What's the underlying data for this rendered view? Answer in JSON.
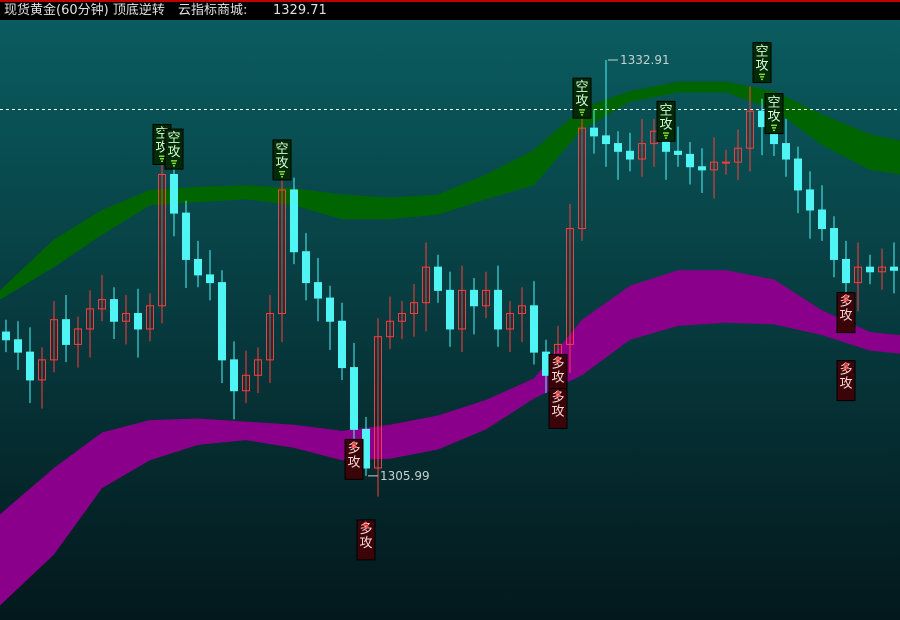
{
  "header": {
    "title": "现货黄金(60分钟) 顶底逆转",
    "price_label": "云指标商城:",
    "price_value": "1329.71"
  },
  "chart_data": {
    "type": "candlestick",
    "ylim": [
      1296.66,
      1335.5
    ],
    "grid": false,
    "colors": {
      "up": "#ff3b3b",
      "down": "#4ff5f5",
      "upper_band": "#006400",
      "lower_band": "#8b008b",
      "bg_top": "#0a5c60",
      "bg_bottom": "#03181c"
    },
    "reference_line": 1329.71,
    "close": [
      1314.8,
      1314,
      1312.2,
      1313.5,
      1316.1,
      1314.5,
      1315.5,
      1316.8,
      1317.4,
      1316,
      1316.5,
      1315.5,
      1317,
      1325.5,
      1323,
      1320,
      1319,
      1318.5,
      1313.5,
      1311.5,
      1312.5,
      1313.5,
      1316.5,
      1324.5,
      1320.5,
      1318.5,
      1317.5,
      1316,
      1313,
      1309,
      1306.5,
      1315,
      1316,
      1316.5,
      1317.2,
      1319.5,
      1318,
      1315.5,
      1318,
      1317,
      1318,
      1315.5,
      1316.5,
      1317,
      1314,
      1312.5,
      1314.5,
      1322,
      1328.5,
      1328,
      1327.5,
      1327,
      1326.5,
      1327.5,
      1328.3,
      1327,
      1326.8,
      1326,
      1325.8,
      1326.3,
      1326.3,
      1327.2,
      1329.6,
      1328.6,
      1327.5,
      1326.5,
      1324.5,
      1323.2,
      1322,
      1320,
      1318.5,
      1319.5,
      1319.2,
      1319.5,
      1319.3
    ],
    "annotations": [
      {
        "text": "1332.91",
        "value": 1332.91,
        "index": 50
      },
      {
        "text": "1305.99",
        "value": 1305.99,
        "index": 30
      }
    ],
    "band_index": [
      0,
      4,
      8,
      12,
      16,
      20,
      24,
      28,
      32,
      36,
      40,
      44,
      48,
      52,
      56,
      60,
      64,
      68,
      72,
      73
    ],
    "upper_band": {
      "top": [
        1318.0,
        1321.3,
        1323.2,
        1324.5,
        1324.7,
        1324.8,
        1324.6,
        1324.2,
        1324.0,
        1324.2,
        1325.5,
        1327.1,
        1329.8,
        1330.9,
        1331.5,
        1331.5,
        1330.9,
        1329.4,
        1328.1,
        1327.7
      ],
      "bottom": [
        1317.4,
        1319.5,
        1321.6,
        1323.5,
        1323.7,
        1323.9,
        1323.5,
        1322.6,
        1322.6,
        1322.9,
        1323.9,
        1324.8,
        1328.4,
        1330.2,
        1330.8,
        1330.8,
        1329.7,
        1327.4,
        1325.8,
        1325.5
      ]
    },
    "lower_band": {
      "top": [
        1303.5,
        1306.5,
        1308.8,
        1309.6,
        1309.7,
        1309.5,
        1309.3,
        1308.9,
        1309.3,
        1309.9,
        1310.9,
        1312.3,
        1316.1,
        1318.3,
        1319.3,
        1319.3,
        1318.7,
        1316.7,
        1315.3,
        1315.1
      ],
      "bottom": [
        1297.6,
        1300.9,
        1305.2,
        1307.0,
        1308.0,
        1308.3,
        1307.8,
        1307.0,
        1307.1,
        1307.7,
        1309.0,
        1311.0,
        1312.5,
        1314.8,
        1315.7,
        1315.9,
        1315.8,
        1315.1,
        1314.1,
        1313.9
      ]
    },
    "signals": [
      {
        "label": "空攻",
        "type": "short",
        "index": 13,
        "stack": 0
      },
      {
        "label": "空攻",
        "type": "short",
        "index": 14,
        "stack": 1
      },
      {
        "label": "空攻",
        "type": "short",
        "index": 23,
        "stack": 0
      },
      {
        "label": "空攻",
        "type": "short",
        "index": 48,
        "stack": 0
      },
      {
        "label": "空攻",
        "type": "short",
        "index": 50,
        "stack": 2
      },
      {
        "label": "空攻",
        "type": "short",
        "index": 55,
        "stack": 0
      },
      {
        "label": "空攻",
        "type": "short",
        "index": 63,
        "stack": 1
      },
      {
        "label": "空攻",
        "type": "short",
        "index": 64,
        "stack": 0
      },
      {
        "label": "多攻",
        "type": "long",
        "index": 29,
        "stack": 0
      },
      {
        "label": "多攻",
        "type": "long",
        "index": 30,
        "stack": 1
      },
      {
        "label": "多攻",
        "type": "long",
        "index": 46,
        "stack": 0
      },
      {
        "label": "多攻",
        "type": "long",
        "index": 46,
        "stack": 1
      },
      {
        "label": "多攻",
        "type": "long",
        "index": 70,
        "stack": 0
      },
      {
        "label": "多攻",
        "type": "long",
        "index": 70,
        "stack": 2
      }
    ]
  }
}
